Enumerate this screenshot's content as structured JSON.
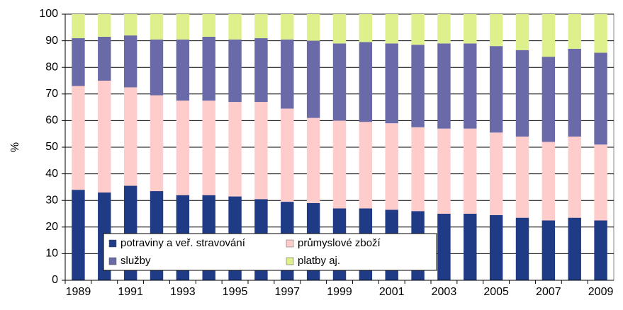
{
  "chart_data": {
    "type": "stacked_bar",
    "y_label": "%",
    "categories": [
      "1989",
      null,
      "1991",
      null,
      "1993",
      null,
      "1995",
      null,
      "1997",
      null,
      "1999",
      null,
      "2001",
      null,
      "2003",
      null,
      "2005",
      null,
      "2007",
      null,
      "2009"
    ],
    "series": [
      {
        "name": "potraviny a veř. stravování",
        "color": "#1f3b86",
        "values": [
          34,
          33,
          35.5,
          33.5,
          32,
          32,
          31.5,
          30.5,
          29.5,
          29,
          27,
          27,
          26.5,
          26,
          25,
          25,
          24.5,
          23.5,
          22.5,
          23.5,
          22.5
        ]
      },
      {
        "name": "průmyslové zboží",
        "color": "#ffcccc",
        "values": [
          39,
          42,
          37,
          36,
          35.5,
          35.5,
          35.5,
          36.5,
          35,
          32,
          33,
          32.5,
          32.5,
          31.5,
          32,
          32,
          31,
          30.5,
          29.5,
          30.5,
          28.5
        ]
      },
      {
        "name": "služby",
        "color": "#6a6aa8",
        "values": [
          18,
          16.5,
          19.5,
          21,
          23,
          24,
          23.5,
          24,
          26,
          29,
          29,
          30,
          30,
          31,
          32,
          32,
          32.5,
          32.5,
          32,
          33,
          34.5
        ]
      },
      {
        "name": "platby aj.",
        "color": "#ddf08c",
        "values": [
          9,
          8.5,
          8,
          9.5,
          9.5,
          8.5,
          9.5,
          9,
          9.5,
          10,
          11,
          10.5,
          11,
          11.5,
          11,
          11,
          12,
          13.5,
          16,
          13,
          14.5
        ]
      }
    ],
    "ylim": [
      0,
      100
    ],
    "yticks": [
      0,
      10,
      20,
      30,
      40,
      50,
      60,
      70,
      80,
      90,
      100
    ],
    "grid": true,
    "legend": "bottom"
  }
}
